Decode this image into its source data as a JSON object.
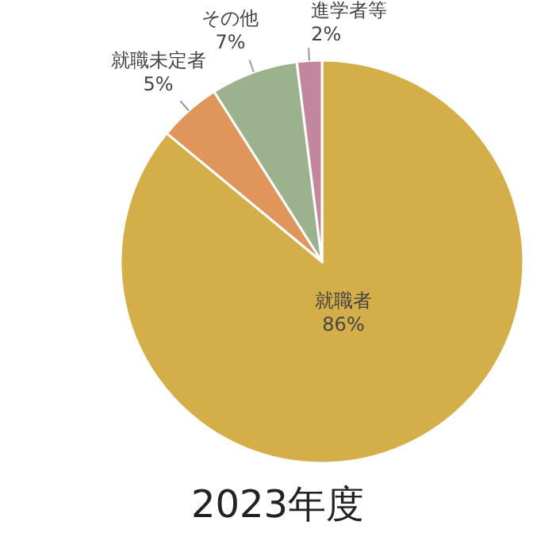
{
  "chart_data": {
    "type": "pie",
    "title": "2023年度",
    "categories": [
      "就職者",
      "就職未定者",
      "その他",
      "進学者等"
    ],
    "values": [
      86,
      5,
      7,
      2
    ],
    "value_labels": [
      "86%",
      "5%",
      "7%",
      "2%"
    ],
    "colors": [
      "#d4ae48",
      "#e0965a",
      "#9cb28f",
      "#c2869f"
    ],
    "legend": false
  }
}
